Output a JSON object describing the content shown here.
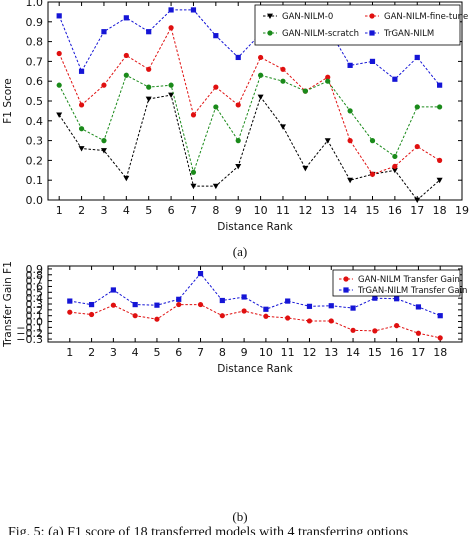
{
  "chart_data": [
    {
      "type": "line",
      "panel_label": "(a)",
      "xlabel": "Distance Rank",
      "ylabel": "F1 Score",
      "xlim": [
        0.5,
        19
      ],
      "ylim": [
        0,
        1.0
      ],
      "x_ticks": [
        1,
        2,
        3,
        4,
        5,
        6,
        7,
        8,
        9,
        10,
        11,
        12,
        13,
        14,
        15,
        16,
        17,
        18,
        19
      ],
      "y_ticks": [
        0.0,
        0.1,
        0.2,
        0.3,
        0.4,
        0.5,
        0.6,
        0.7,
        0.8,
        0.9,
        1.0
      ],
      "y_tick_labels": [
        "0.0",
        "0.1",
        "0.2",
        "0.3",
        "0.4",
        "0.5",
        "0.6",
        "0.7",
        "0.8",
        "0.9",
        "1.0"
      ],
      "grid": false,
      "legend_position": "top-right",
      "x": [
        1,
        2,
        3,
        4,
        5,
        6,
        7,
        8,
        9,
        10,
        11,
        12,
        13,
        14,
        15,
        16,
        17,
        18
      ],
      "series": [
        {
          "name": "GAN-NILM-0",
          "color": "#000000",
          "marker": "triangle-down",
          "values": [
            0.43,
            0.26,
            0.25,
            0.11,
            0.51,
            0.53,
            0.07,
            0.07,
            0.17,
            0.52,
            0.37,
            0.16,
            0.3,
            0.1,
            0.13,
            0.15,
            0.0,
            0.1
          ]
        },
        {
          "name": "GAN-NILM-fine-tune",
          "color": "#e01010",
          "marker": "circle",
          "values": [
            0.74,
            0.48,
            0.58,
            0.73,
            0.66,
            0.87,
            0.43,
            0.57,
            0.48,
            0.72,
            0.66,
            0.55,
            0.62,
            0.3,
            0.13,
            0.17,
            0.27,
            0.2
          ]
        },
        {
          "name": "GAN-NILM-scratch",
          "color": "#1a8a1a",
          "marker": "circle",
          "values": [
            0.58,
            0.36,
            0.3,
            0.63,
            0.57,
            0.58,
            0.14,
            0.47,
            0.3,
            0.63,
            0.6,
            0.55,
            0.6,
            0.45,
            0.3,
            0.22,
            0.47,
            0.47
          ]
        },
        {
          "name": "TrGAN-NILM",
          "color": "#1515d6",
          "marker": "square",
          "values": [
            0.93,
            0.65,
            0.85,
            0.92,
            0.85,
            0.96,
            0.96,
            0.83,
            0.72,
            0.84,
            0.95,
            0.81,
            0.87,
            0.68,
            0.7,
            0.61,
            0.72,
            0.58
          ]
        }
      ]
    },
    {
      "type": "line",
      "panel_label": "(b)",
      "xlabel": "Distance Rank",
      "ylabel": "Transfer Gain F1",
      "xlim": [
        0,
        19
      ],
      "ylim": [
        -0.35,
        0.95
      ],
      "x_ticks": [
        1,
        2,
        3,
        4,
        5,
        6,
        7,
        8,
        9,
        10,
        11,
        12,
        13,
        14,
        15,
        16,
        17,
        18
      ],
      "y_ticks": [
        -0.3,
        -0.2,
        -0.1,
        0.0,
        0.1,
        0.2,
        0.3,
        0.4,
        0.5,
        0.6,
        0.7,
        0.8,
        0.9
      ],
      "y_tick_labels": [
        "−0.3",
        "−0.2",
        "−0.1",
        "0.0",
        "0.1",
        "0.2",
        "0.3",
        "0.4",
        "0.5",
        "0.6",
        "0.7",
        "0.8",
        "0.9"
      ],
      "grid": false,
      "legend_position": "top-right",
      "x": [
        1,
        2,
        3,
        4,
        5,
        6,
        7,
        8,
        9,
        10,
        11,
        12,
        13,
        14,
        15,
        16,
        17,
        18
      ],
      "series": [
        {
          "name": "GAN-NILM Transfer Gain",
          "color": "#e01010",
          "marker": "circle",
          "values": [
            0.16,
            0.12,
            0.28,
            0.1,
            0.04,
            0.29,
            0.29,
            0.1,
            0.18,
            0.09,
            0.06,
            0.01,
            0.01,
            -0.15,
            -0.16,
            -0.07,
            -0.2,
            -0.28
          ]
        },
        {
          "name": "TrGAN-NILM Transfer Gain",
          "color": "#1515d6",
          "marker": "square",
          "values": [
            0.35,
            0.29,
            0.54,
            0.29,
            0.28,
            0.38,
            0.82,
            0.36,
            0.42,
            0.21,
            0.35,
            0.26,
            0.27,
            0.23,
            0.4,
            0.39,
            0.25,
            0.1
          ]
        }
      ]
    }
  ],
  "caption": "Fig. 5: (a) F1 score of 18 transferred models with 4 transferring options"
}
